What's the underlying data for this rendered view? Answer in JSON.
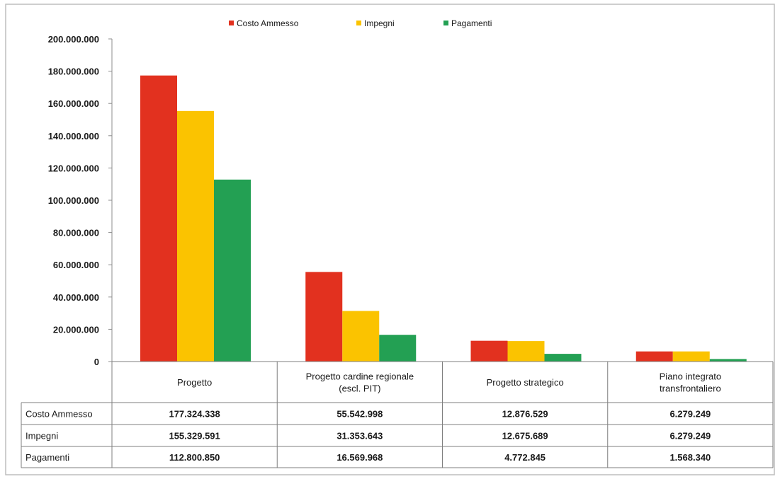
{
  "chart_data": {
    "type": "bar",
    "title": "",
    "xlabel": "",
    "ylabel": "",
    "ylim": [
      0,
      200000000
    ],
    "yticks": [
      "0",
      "20.000.000",
      "40.000.000",
      "60.000.000",
      "80.000.000",
      "100.000.000",
      "120.000.000",
      "140.000.000",
      "160.000.000",
      "180.000.000",
      "200.000.000"
    ],
    "categories": [
      [
        "Progetto"
      ],
      [
        "Progetto cardine regionale",
        "(escl. PIT)"
      ],
      [
        "Progetto strategico"
      ],
      [
        "Piano integrato",
        "transfrontaliero"
      ]
    ],
    "series": [
      {
        "name": "Costo Ammesso",
        "color": "#e2311f",
        "values": [
          177324338,
          55542998,
          12876529,
          6279249
        ],
        "labels": [
          "177.324.338",
          "55.542.998",
          "12.876.529",
          "6.279.249"
        ]
      },
      {
        "name": "Impegni",
        "color": "#fbc300",
        "values": [
          155329591,
          31353643,
          12675689,
          6279249
        ],
        "labels": [
          "155.329.591",
          "31.353.643",
          "12.675.689",
          "6.279.249"
        ]
      },
      {
        "name": "Pagamenti",
        "color": "#23a053",
        "values": [
          112800850,
          16569968,
          4772845,
          1568340
        ],
        "labels": [
          "112.800.850",
          "16.569.968",
          "4.772.845",
          "1.568.340"
        ]
      }
    ],
    "legend_position": "top",
    "grid": false,
    "data_table": true
  }
}
